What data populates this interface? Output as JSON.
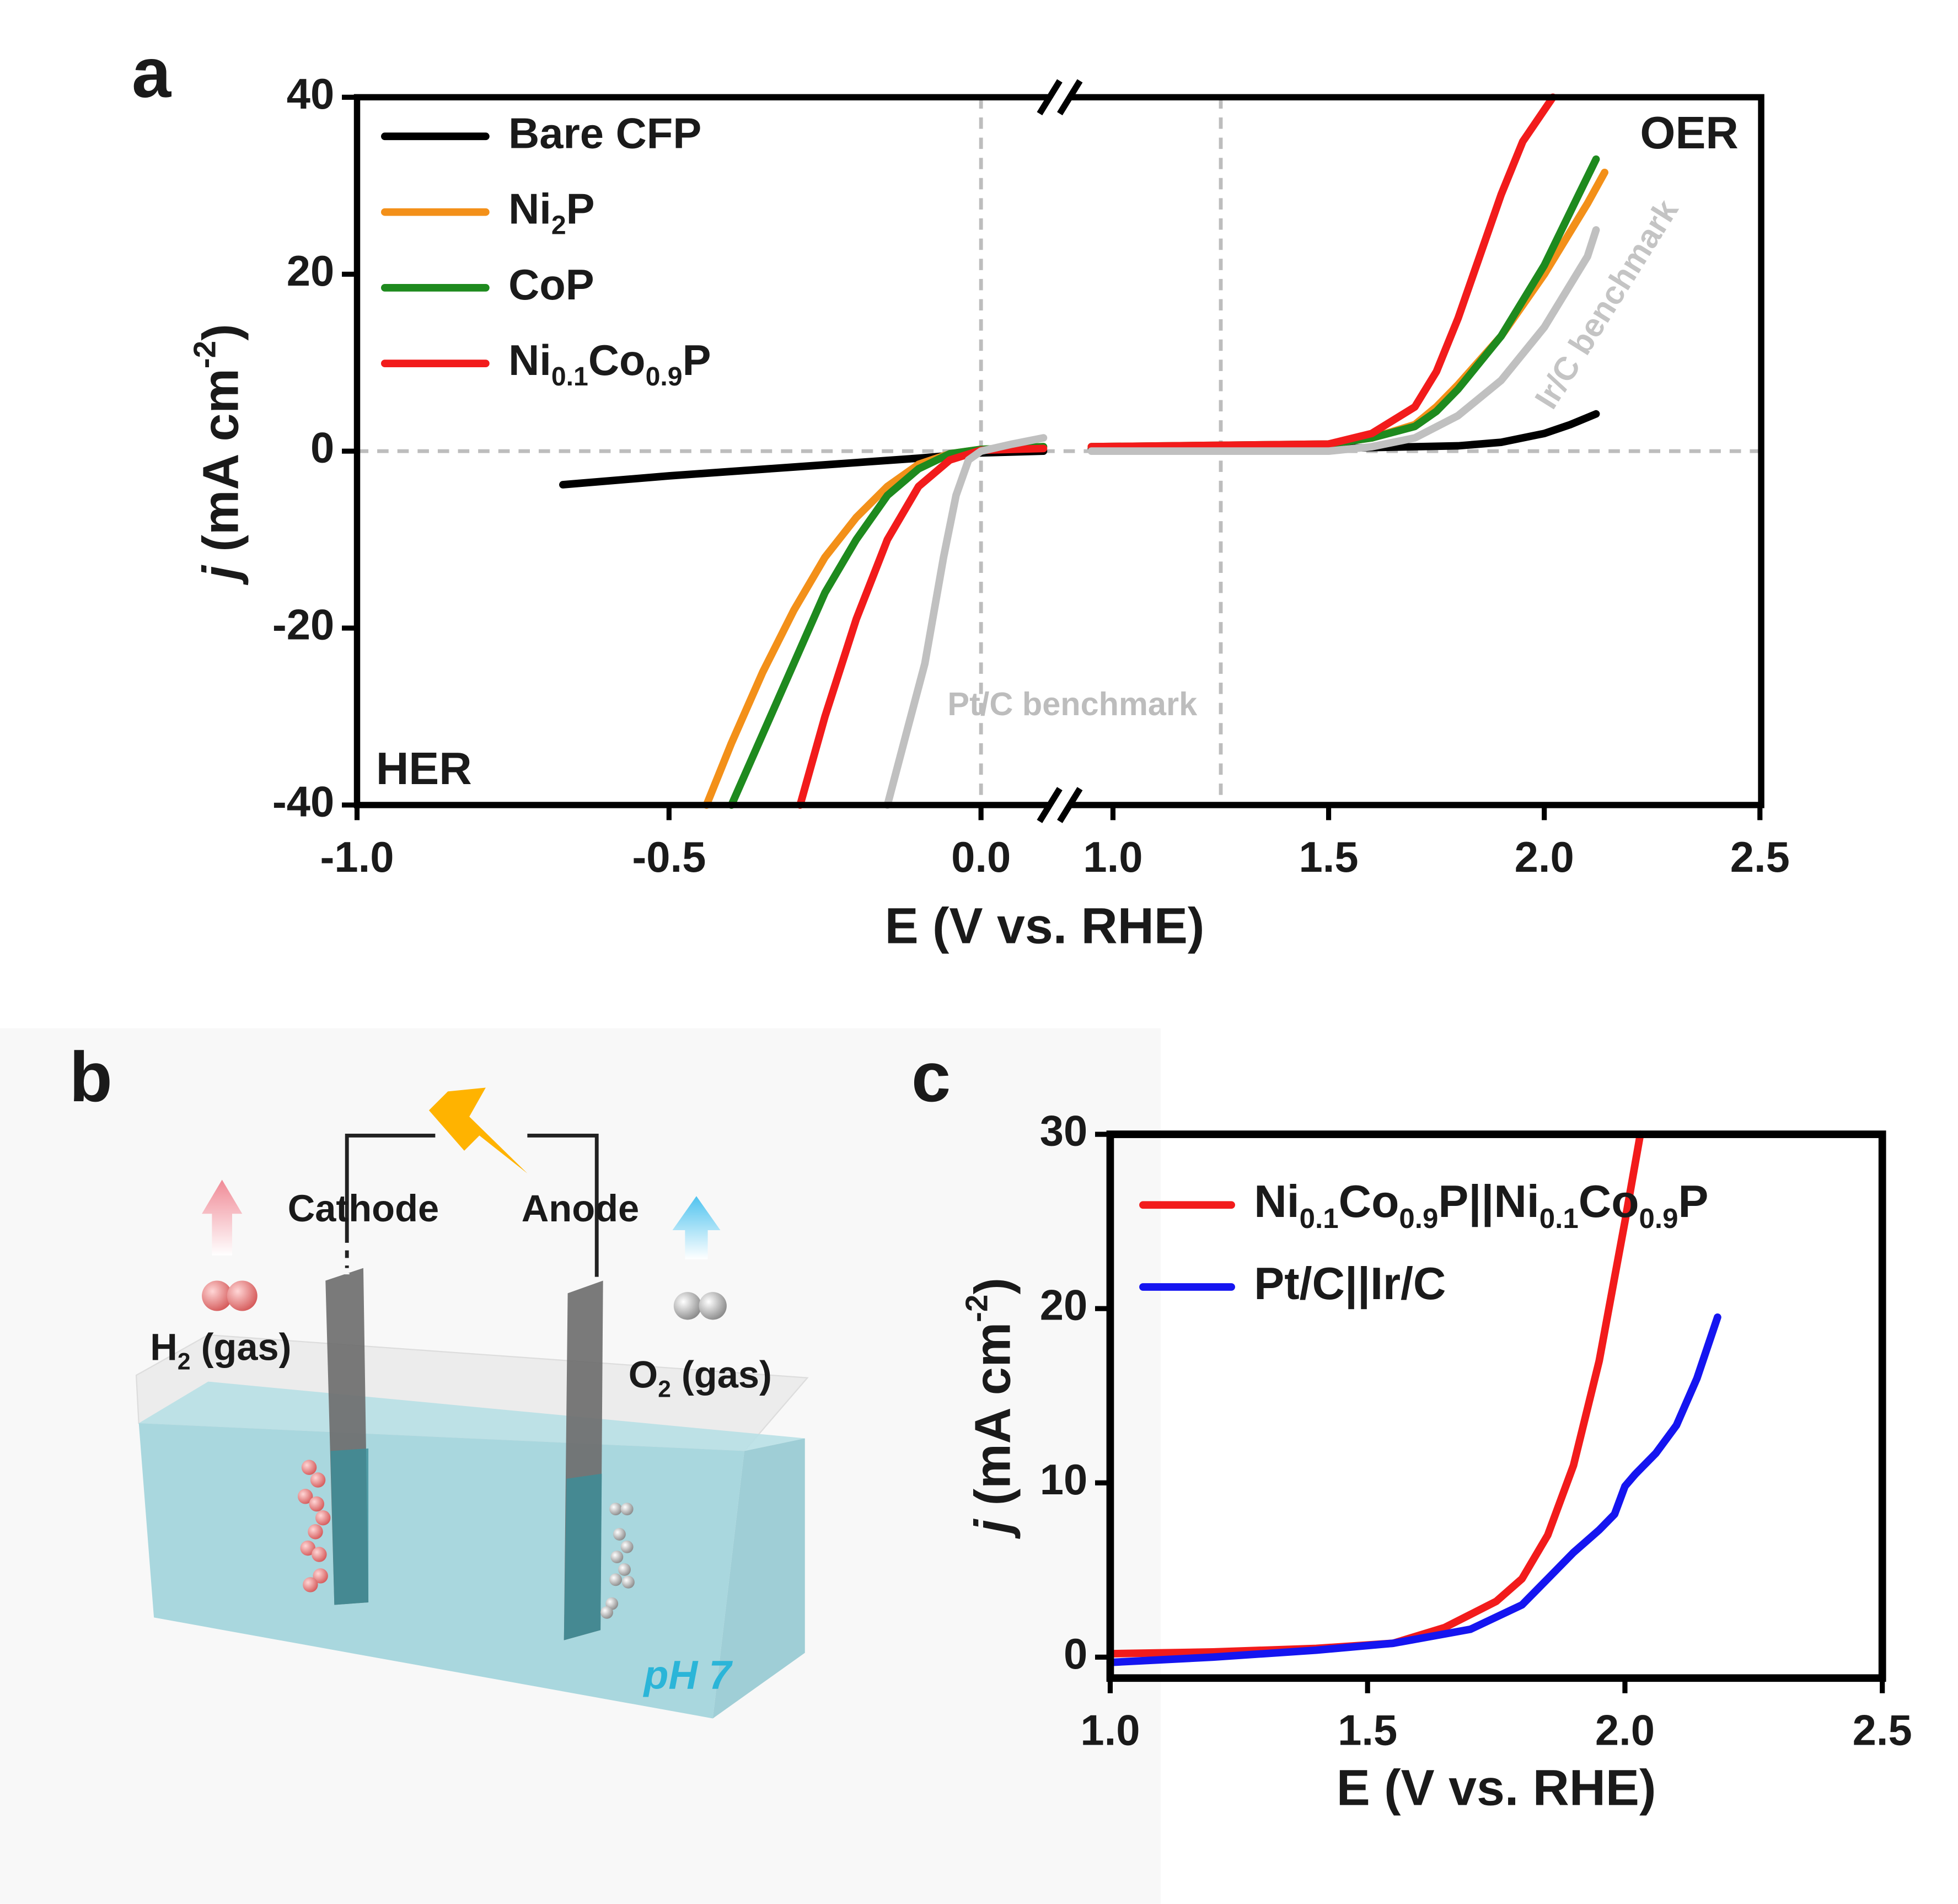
{
  "chart_data": [
    {
      "type": "line",
      "panel": "a",
      "xlabel": "E (V vs. RHE)",
      "ylabel": "j (mA cm-2)",
      "x_segments": [
        {
          "xlim": [
            -1.0,
            0.11
          ],
          "xticks": [
            {
              "value": -1.0,
              "label": "-1.0"
            },
            -0.5,
            {
              "value": 0.0,
              "label": "0.0"
            }
          ]
        },
        {
          "xlim": [
            0.9,
            2.5
          ],
          "xticks": [
            {
              "value": 1.0,
              "label": "1.0"
            },
            1.5,
            {
              "value": 2.0,
              "label": "2.0"
            },
            2.5
          ]
        }
      ],
      "ylim": [
        -40,
        40
      ],
      "yticks": [
        40,
        20,
        0,
        -20,
        -40
      ],
      "ref_lines": {
        "x": [
          0,
          1.25
        ],
        "y": [
          0
        ]
      },
      "legend": "upper left",
      "annotations": [
        "HER",
        "OER",
        "Pt/C benchmark",
        "Ir/C benchmark"
      ],
      "series": [
        {
          "name": "Bare CFP",
          "color": "#000000",
          "x": [
            -0.67,
            -0.5,
            -0.3,
            -0.1,
            0,
            0.1,
            null,
            0.95,
            1.2,
            1.5,
            1.8,
            1.9,
            2.0,
            2.06,
            2.12
          ],
          "values": [
            -3.8,
            -2.8,
            -1.8,
            -0.8,
            -0.2,
            0,
            null,
            0.3,
            0.3,
            0.3,
            0.6,
            1,
            2,
            3,
            4.2
          ]
        },
        {
          "name": "Ni2P",
          "color": "#f39019",
          "x": [
            -0.44,
            -0.4,
            -0.35,
            -0.3,
            -0.25,
            -0.2,
            -0.15,
            -0.1,
            -0.05,
            0,
            0.1,
            null,
            0.95,
            1.3,
            1.5,
            1.6,
            1.7,
            1.75,
            1.8,
            1.9,
            2.0,
            2.1,
            2.14
          ],
          "values": [
            -40,
            -33,
            -25,
            -18,
            -12,
            -7.5,
            -4,
            -1.5,
            -0.3,
            0.2,
            0.5,
            null,
            0.5,
            0.5,
            0.8,
            1.5,
            3,
            5,
            7.5,
            13,
            20,
            28,
            31.5
          ]
        },
        {
          "name": "CoP",
          "color": "#1e8a1e",
          "x": [
            -0.4,
            -0.35,
            -0.3,
            -0.25,
            -0.2,
            -0.15,
            -0.1,
            -0.05,
            0,
            0.1,
            null,
            0.95,
            1.5,
            1.6,
            1.7,
            1.75,
            1.8,
            1.9,
            2.0,
            2.08,
            2.12
          ],
          "values": [
            -40,
            -32,
            -24,
            -16,
            -10,
            -5,
            -2,
            -0.3,
            0.2,
            0.5,
            null,
            0.5,
            0.8,
            1.5,
            2.8,
            4.5,
            7,
            13,
            21,
            29,
            33
          ]
        },
        {
          "name": "Ni0.1Co0.9P",
          "color": "#f21b1b",
          "x": [
            -0.29,
            -0.25,
            -0.2,
            -0.15,
            -0.1,
            -0.05,
            0,
            0.1,
            null,
            0.95,
            1.5,
            1.6,
            1.7,
            1.75,
            1.8,
            1.85,
            1.9,
            1.95,
            2.02
          ],
          "values": [
            -40,
            -30,
            -19,
            -10,
            -4,
            -1,
            0.1,
            0.3,
            null,
            0.5,
            0.8,
            2,
            5,
            9,
            15,
            22,
            29,
            35,
            40
          ]
        },
        {
          "color": "#c0c0c0",
          "x": [
            -0.15,
            -0.12,
            -0.09,
            -0.06,
            -0.04,
            -0.02,
            0,
            0.05,
            0.1,
            null,
            0.95,
            1.5,
            1.6,
            1.7,
            1.8,
            1.9,
            2.0,
            2.1,
            2.12
          ],
          "values": [
            -40,
            -32,
            -24,
            -12,
            -5,
            -1,
            0,
            0.8,
            1.5,
            null,
            0,
            0,
            0.5,
            1.5,
            4,
            8,
            14,
            22,
            25
          ]
        }
      ]
    },
    {
      "type": "line",
      "panel": "c",
      "xlabel": "E (V vs. RHE)",
      "ylabel": "j (mA cm-2)",
      "xlim": [
        1.0,
        2.5
      ],
      "xticks": [
        {
          "value": 1.0,
          "label": "1.0"
        },
        1.5,
        {
          "value": 2.0,
          "label": "2.0"
        },
        2.5
      ],
      "ylim": [
        -1.2,
        30
      ],
      "yticks": [
        0,
        10,
        20,
        30
      ],
      "legend": "upper left",
      "series": [
        {
          "name": "Ni0.1Co0.9P||Ni0.1Co0.9P",
          "color": "#f21b1b",
          "x": [
            1.0,
            1.2,
            1.4,
            1.55,
            1.65,
            1.75,
            1.8,
            1.85,
            1.9,
            1.95,
            2.0,
            2.03
          ],
          "values": [
            0.2,
            0.3,
            0.5,
            0.8,
            1.7,
            3.2,
            4.5,
            7,
            11,
            17,
            25,
            30
          ]
        },
        {
          "name": "Pt/C||Ir/C",
          "color": "#1515f0",
          "x": [
            1.0,
            1.2,
            1.4,
            1.55,
            1.7,
            1.8,
            1.85,
            1.9,
            1.95,
            1.98,
            2.0,
            2.02,
            2.06,
            2.1,
            2.14,
            2.18
          ],
          "values": [
            -0.3,
            0,
            0.4,
            0.8,
            1.6,
            3,
            4.5,
            6,
            7.3,
            8.2,
            9.8,
            10.5,
            11.7,
            13.3,
            16,
            19.5
          ]
        }
      ]
    }
  ],
  "panel_b": {
    "panel": "b",
    "cathode": "Cathode",
    "anode": "Anode",
    "h2": "H2 (gas)",
    "o2": "O2 (gas)",
    "ph": "pH 7"
  }
}
